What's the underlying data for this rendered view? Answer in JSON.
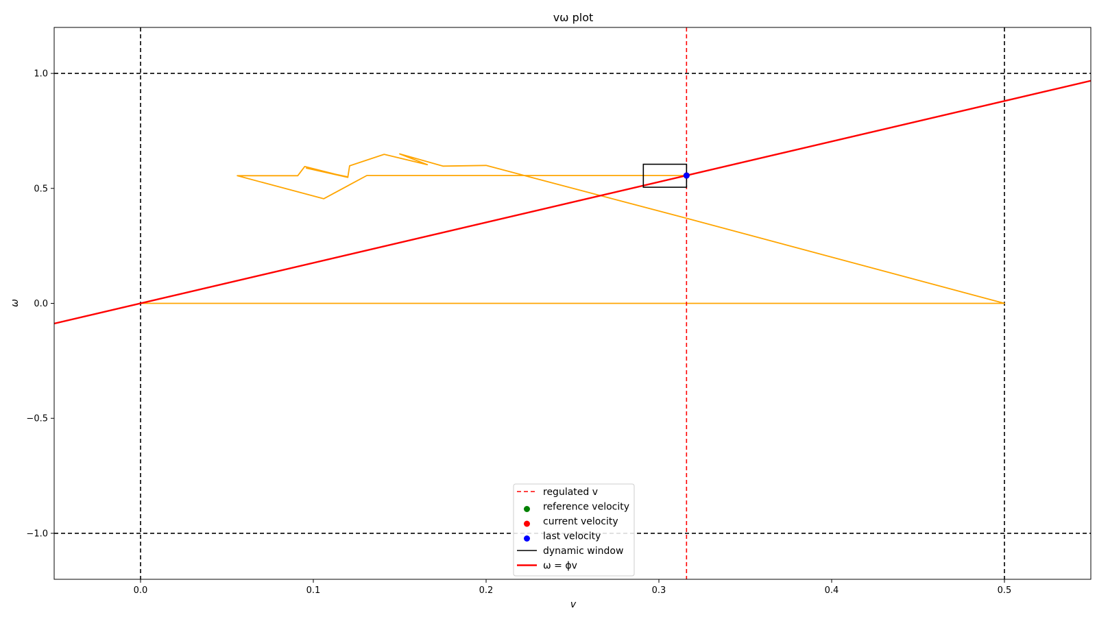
{
  "chart_data": {
    "type": "line",
    "title": "vω plot",
    "xlabel": "v",
    "ylabel": "ω",
    "xlim": [
      -0.05,
      0.55
    ],
    "ylim": [
      -1.2,
      1.2
    ],
    "xticks": [
      0.0,
      0.1,
      0.2,
      0.3,
      0.4,
      0.5
    ],
    "xtick_labels": [
      "0.0",
      "0.1",
      "0.2",
      "0.3",
      "0.4",
      "0.5"
    ],
    "yticks": [
      -1.0,
      -0.5,
      0.0,
      0.5,
      1.0
    ],
    "ytick_labels": [
      "−1.0",
      "−0.5",
      "0.0",
      "0.5",
      "1.0"
    ],
    "grid": false,
    "bounds": {
      "v_min": 0.0,
      "v_max": 0.5,
      "w_min": -1.0,
      "w_max": 1.0,
      "color": "#000000",
      "style": "dashed"
    },
    "regulated_v": {
      "name": "regulated v",
      "value": 0.316,
      "color": "#ff0000",
      "style": "dashed"
    },
    "phi_line": {
      "name": "ω = ϕv",
      "slope": 1.76,
      "color": "#ff0000"
    },
    "trajectory": {
      "color": "#ffa500",
      "points": [
        [
          0.0,
          0.0
        ],
        [
          0.5,
          0.0
        ],
        [
          0.316,
          0.37
        ],
        [
          0.2,
          0.6
        ],
        [
          0.175,
          0.597
        ],
        [
          0.15,
          0.65
        ],
        [
          0.166,
          0.603
        ],
        [
          0.141,
          0.648
        ],
        [
          0.121,
          0.598
        ],
        [
          0.12,
          0.55
        ],
        [
          0.096,
          0.588
        ],
        [
          0.12,
          0.548
        ],
        [
          0.095,
          0.595
        ],
        [
          0.091,
          0.555
        ],
        [
          0.056,
          0.555
        ],
        [
          0.106,
          0.455
        ],
        [
          0.131,
          0.556
        ],
        [
          0.316,
          0.556
        ]
      ]
    },
    "dynamic_window": {
      "name": "dynamic window",
      "v": [
        0.291,
        0.316
      ],
      "w": [
        0.505,
        0.605
      ],
      "color": "#000000"
    },
    "points": {
      "reference": {
        "name": "reference velocity",
        "v": 0.316,
        "w": 0.556,
        "color": "#008000"
      },
      "current": {
        "name": "current velocity",
        "v": 0.316,
        "w": 0.556,
        "color": "#ff0000"
      },
      "last": {
        "name": "last velocity",
        "v": 0.316,
        "w": 0.556,
        "color": "#0000ff"
      }
    },
    "legend": {
      "placement": "lower-center",
      "entries": [
        {
          "label": "regulated v",
          "kind": "dashed-line",
          "color": "#ff0000"
        },
        {
          "label": "reference velocity",
          "kind": "dot",
          "color": "#008000"
        },
        {
          "label": "current velocity",
          "kind": "dot",
          "color": "#ff0000"
        },
        {
          "label": "last velocity",
          "kind": "dot",
          "color": "#0000ff"
        },
        {
          "label": "dynamic window",
          "kind": "line",
          "color": "#000000"
        },
        {
          "label": "ω = ϕv",
          "kind": "thick-line",
          "color": "#ff0000"
        }
      ]
    }
  }
}
